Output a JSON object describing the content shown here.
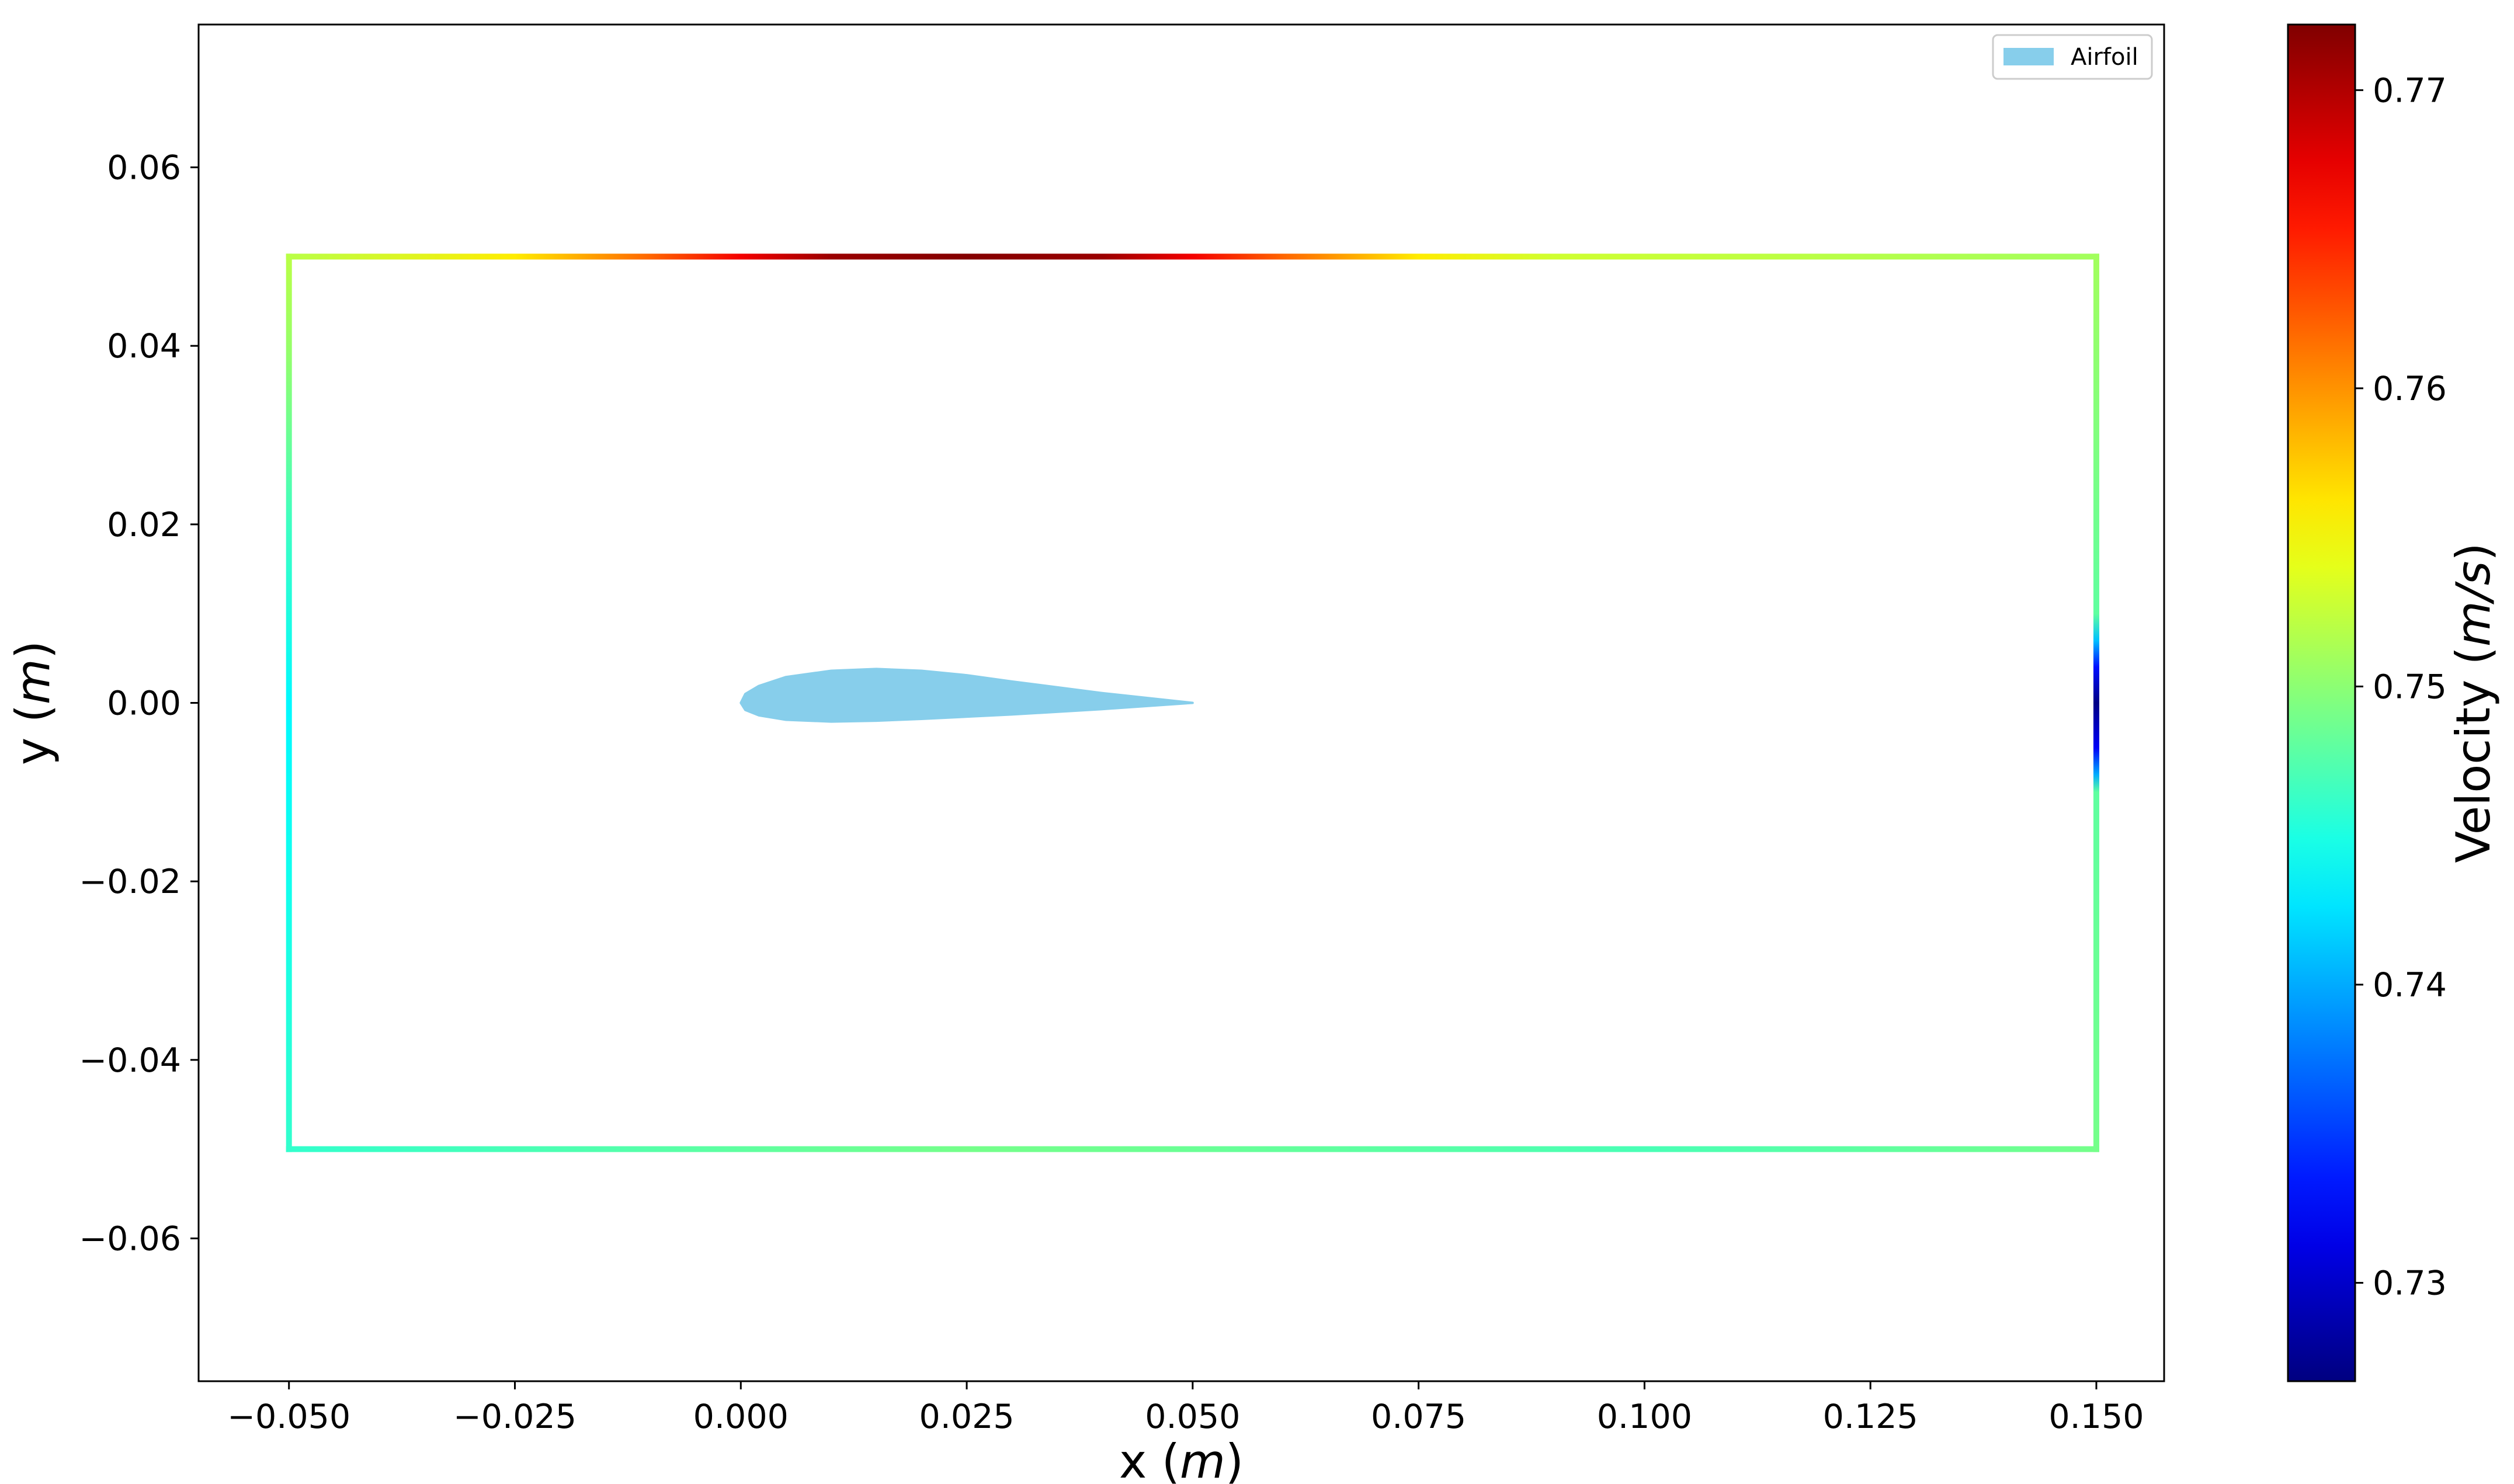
{
  "chart_data": {
    "type": "scatter",
    "xlabel": "x (m)",
    "ylabel": "y (m)",
    "xlim": [
      -0.06,
      0.1575
    ],
    "ylim": [
      -0.076,
      0.076
    ],
    "x_ticks": [
      -0.05,
      -0.025,
      0.0,
      0.025,
      0.05,
      0.075,
      0.1,
      0.125,
      0.15
    ],
    "x_tick_labels": [
      "−0.050",
      "−0.025",
      "0.000",
      "0.025",
      "0.050",
      "0.075",
      "0.100",
      "0.125",
      "0.150"
    ],
    "y_ticks": [
      0.06,
      0.04,
      0.02,
      0.0,
      -0.02,
      -0.04,
      -0.06
    ],
    "y_tick_labels": [
      "0.06",
      "0.04",
      "0.02",
      "0.00",
      "−0.02",
      "−0.04",
      "−0.06"
    ],
    "grid": false,
    "legend": {
      "position": "top-right",
      "entries": [
        {
          "name": "Airfoil",
          "color": "#87ceeb"
        }
      ]
    },
    "colorbar": {
      "label": "Velocity (m/s)",
      "colormap": "jet",
      "range": [
        0.7267,
        0.7722
      ],
      "ticks": [
        0.73,
        0.74,
        0.75,
        0.76,
        0.77
      ],
      "tick_labels": [
        "0.73",
        "0.74",
        "0.75",
        "0.76",
        "0.77"
      ]
    },
    "airfoil": {
      "label": "Airfoil",
      "color": "#87ceeb",
      "chord": [
        0.0,
        0.05
      ],
      "upper": [
        [
          0.05,
          0.0
        ],
        [
          0.04,
          0.0011
        ],
        [
          0.03,
          0.0024
        ],
        [
          0.025,
          0.0031
        ],
        [
          0.02,
          0.0036
        ],
        [
          0.015,
          0.0038
        ],
        [
          0.01,
          0.0036
        ],
        [
          0.005,
          0.0029
        ],
        [
          0.002,
          0.0019
        ],
        [
          0.0005,
          0.001
        ],
        [
          0.0,
          0.0
        ]
      ],
      "lower": [
        [
          0.0,
          0.0
        ],
        [
          0.0005,
          -0.0008
        ],
        [
          0.002,
          -0.0014
        ],
        [
          0.005,
          -0.0019
        ],
        [
          0.01,
          -0.0021
        ],
        [
          0.015,
          -0.002
        ],
        [
          0.02,
          -0.0018
        ],
        [
          0.03,
          -0.0013
        ],
        [
          0.04,
          -0.0007
        ],
        [
          0.05,
          0.0
        ]
      ]
    },
    "boundaries": [
      {
        "name": "top",
        "x_range": [
          -0.05,
          0.15
        ],
        "y": 0.05,
        "stops": [
          [
            -0.05,
            0.752
          ],
          [
            -0.025,
            0.756
          ],
          [
            -0.01,
            0.762
          ],
          [
            0.0,
            0.767
          ],
          [
            0.01,
            0.771
          ],
          [
            0.025,
            0.772
          ],
          [
            0.04,
            0.771
          ],
          [
            0.05,
            0.767
          ],
          [
            0.06,
            0.762
          ],
          [
            0.075,
            0.756
          ],
          [
            0.09,
            0.753
          ],
          [
            0.15,
            0.751
          ]
        ]
      },
      {
        "name": "bottom",
        "x_range": [
          -0.05,
          0.15
        ],
        "y": -0.05,
        "stops": [
          [
            -0.05,
            0.746
          ],
          [
            0.0,
            0.748
          ],
          [
            0.025,
            0.749
          ],
          [
            0.05,
            0.7485
          ],
          [
            0.1,
            0.747
          ],
          [
            0.15,
            0.749
          ]
        ]
      },
      {
        "name": "left",
        "x": -0.05,
        "y_range": [
          -0.05,
          0.05
        ],
        "stops": [
          [
            -0.05,
            0.746
          ],
          [
            -0.02,
            0.7445
          ],
          [
            0.0,
            0.7435
          ],
          [
            0.02,
            0.7465
          ],
          [
            0.04,
            0.7505
          ],
          [
            0.05,
            0.752
          ]
        ]
      },
      {
        "name": "right",
        "x": 0.15,
        "y_range": [
          -0.05,
          0.05
        ],
        "stops": [
          [
            -0.05,
            0.749
          ],
          [
            -0.01,
            0.748
          ],
          [
            -0.008,
            0.74
          ],
          [
            -0.005,
            0.732
          ],
          [
            0.0,
            0.727
          ],
          [
            0.004,
            0.733
          ],
          [
            0.007,
            0.741
          ],
          [
            0.01,
            0.748
          ],
          [
            0.05,
            0.751
          ]
        ]
      }
    ]
  }
}
